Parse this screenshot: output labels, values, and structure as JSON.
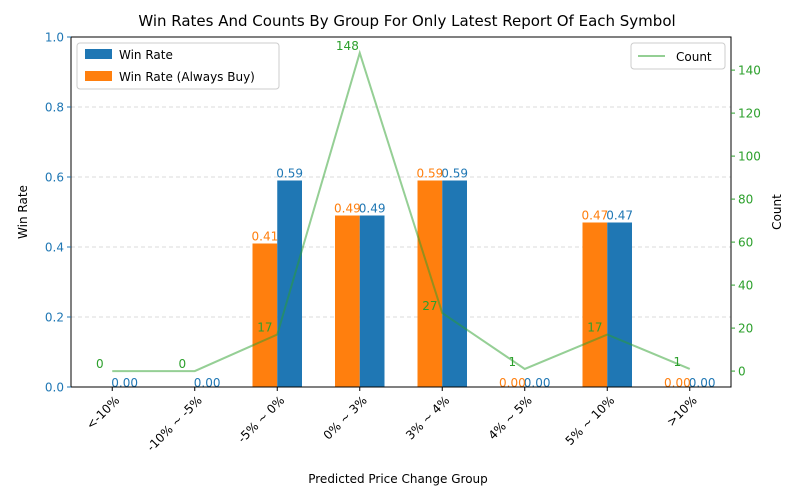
{
  "chart_data": {
    "type": "bar",
    "title": "Win Rates And Counts By Group For Only Latest Report Of Each Symbol",
    "xlabel": "Predicted Price Change Group",
    "ylabel": "Win Rate",
    "y2label": "Count",
    "categories": [
      "<-10%",
      "-10% ~ -5%",
      "-5% ~ 0%",
      "0% ~ 3%",
      "3% ~ 4%",
      "4% ~ 5%",
      "5% ~ 10%",
      ">10%"
    ],
    "ylim": [
      0,
      1.0
    ],
    "yticks": [
      "0.0",
      "0.2",
      "0.4",
      "0.6",
      "0.8",
      "1.0"
    ],
    "y2lim": [
      -7.4,
      155.4
    ],
    "y2ticks": [
      "0",
      "20",
      "40",
      "60",
      "80",
      "100",
      "120",
      "140"
    ],
    "grid": "y-dashed",
    "series": [
      {
        "name": "Win Rate",
        "kind": "bar",
        "color": "#1f77b4",
        "values": [
          0.0,
          0.0,
          0.59,
          0.49,
          0.59,
          0.0,
          0.47,
          0.0
        ],
        "labels": [
          "0.00",
          "0.00",
          "0.59",
          "0.49",
          "0.59",
          "0.00",
          "0.47",
          "0.00"
        ]
      },
      {
        "name": "Win Rate (Always Buy)",
        "kind": "bar",
        "color": "#ff7f0e",
        "values": [
          0.0,
          0.0,
          0.41,
          0.49,
          0.59,
          0.0,
          0.47,
          0.0
        ],
        "labels": [
          "",
          "",
          "0.41",
          "0.49",
          "0.59",
          "0.00",
          "0.47",
          "0.00"
        ]
      },
      {
        "name": "Count",
        "kind": "line",
        "axis": "right",
        "color": "#2ca02c",
        "values": [
          0,
          0,
          17,
          148,
          27,
          1,
          17,
          1
        ],
        "labels": [
          "0",
          "0",
          "17",
          "148",
          "27",
          "1",
          "17",
          "1"
        ]
      }
    ],
    "legend_left": "upper-left",
    "legend_right": "upper-right"
  }
}
